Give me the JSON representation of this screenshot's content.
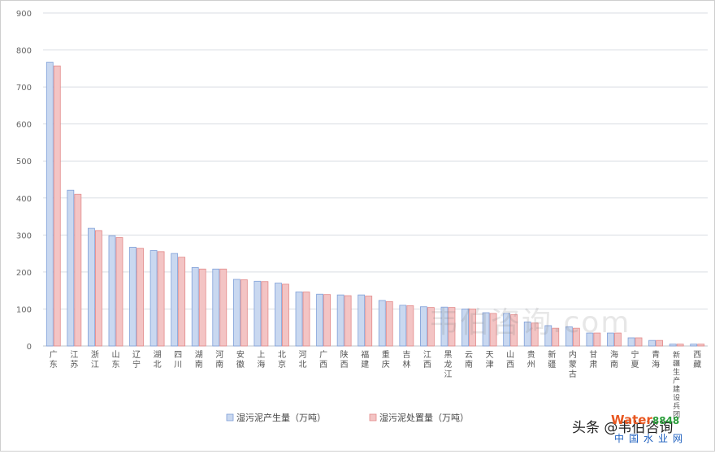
{
  "chart_data": {
    "type": "bar",
    "categories": [
      "广东",
      "江苏",
      "浙江",
      "山东",
      "辽宁",
      "湖北",
      "四川",
      "湖南",
      "河南",
      "安徽",
      "上海",
      "北京",
      "河北",
      "广西",
      "陕西",
      "福建",
      "重庆",
      "吉林",
      "江西",
      "黑龙江",
      "云南",
      "天津",
      "山西",
      "贵州",
      "新疆",
      "内蒙古",
      "甘肃",
      "海南",
      "宁夏",
      "青海",
      "新疆生产建设兵团",
      "西藏"
    ],
    "series": [
      {
        "name": "湿污泥产生量（万吨）",
        "color": "#c9d8f0",
        "stroke": "#7f9fd8",
        "values": [
          767,
          421,
          318,
          298,
          267,
          258,
          250,
          212,
          208,
          180,
          175,
          170,
          146,
          140,
          138,
          138,
          123,
          110,
          106,
          105,
          100,
          90,
          88,
          65,
          55,
          52,
          35,
          35,
          22,
          15,
          5,
          5
        ]
      },
      {
        "name": "湿污泥处置量（万吨）",
        "color": "#f3c4c4",
        "stroke": "#e38a8a",
        "values": [
          757,
          410,
          312,
          293,
          264,
          255,
          240,
          208,
          208,
          179,
          174,
          167,
          146,
          139,
          136,
          135,
          120,
          109,
          104,
          104,
          100,
          88,
          85,
          62,
          48,
          48,
          35,
          35,
          22,
          15,
          5,
          5
        ]
      }
    ],
    "ylim": [
      0,
      900
    ],
    "yticks": [
      0,
      100,
      200,
      300,
      400,
      500,
      600,
      700,
      800,
      900
    ],
    "grid": true,
    "legend_position": "bottom-center"
  },
  "watermark": "韦伯咨询.com",
  "credit": "头条 @韦伯咨询",
  "brand": {
    "word": "Water",
    "num": "8848",
    "cn": "中国水业网"
  }
}
